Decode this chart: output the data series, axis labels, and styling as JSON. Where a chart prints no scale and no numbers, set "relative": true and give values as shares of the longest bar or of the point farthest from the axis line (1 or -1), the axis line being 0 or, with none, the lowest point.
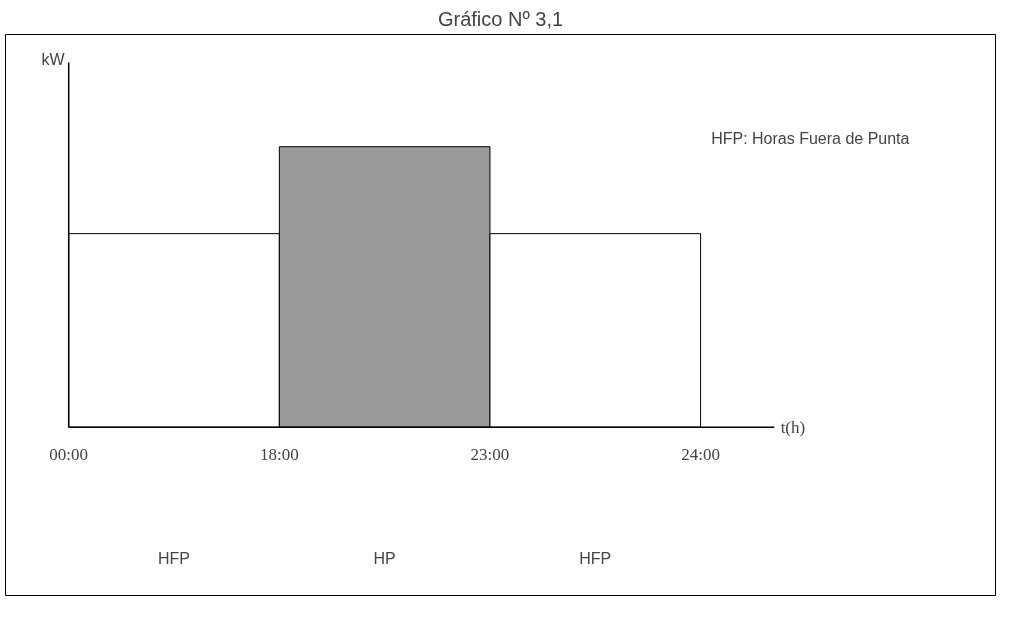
{
  "chart_data": {
    "type": "bar",
    "title": "Gráfico Nº 3,1",
    "ylabel": "kW",
    "xlabel": "t(h)",
    "relative": true,
    "categories": [
      "HFP",
      "HP",
      "HFP"
    ],
    "values": [
      0.69,
      1,
      0.69
    ],
    "colors": [
      "#ffffff",
      "#9a9a9a",
      "#ffffff"
    ],
    "annotations": [
      "00:00",
      "18:00",
      "23:00",
      "24:00",
      "HFP: Horas Fuera de Punta"
    ],
    "grid": false
  }
}
